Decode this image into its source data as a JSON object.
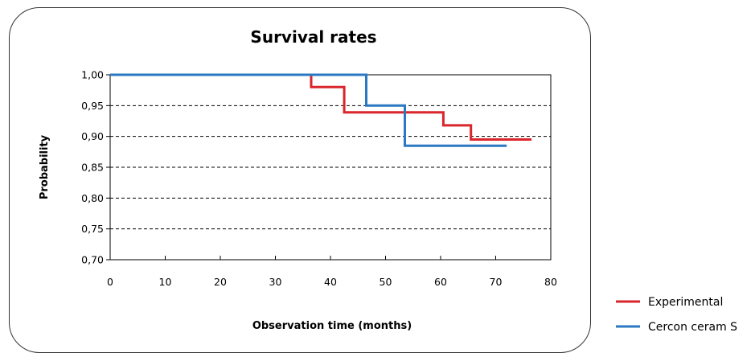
{
  "chart_data": {
    "type": "line",
    "step": true,
    "title": "Survival rates",
    "xlabel": "Observation time (months)",
    "ylabel": "Probability",
    "xlim": [
      0,
      80
    ],
    "ylim": [
      0.7,
      1.0
    ],
    "x_tick_labels": [
      "0",
      "10",
      "20",
      "30",
      "40",
      "50",
      "60",
      "70",
      "80"
    ],
    "x_tick_values": [
      0,
      10,
      20,
      30,
      40,
      50,
      60,
      70,
      80
    ],
    "y_tick_labels": [
      "1,00",
      "0,95",
      "0,90",
      "0,85",
      "0,80",
      "0,75",
      "0,70"
    ],
    "y_tick_values": [
      1.0,
      0.95,
      0.9,
      0.85,
      0.8,
      0.75,
      0.7
    ],
    "grid": "horizontal dashed",
    "legend_position": "bottom-right, outside",
    "series": [
      {
        "name": "Experimental",
        "color": "#d9252b",
        "x": [
          0,
          36.5,
          36.5,
          42.5,
          42.5,
          60.5,
          60.5,
          65.5,
          65.5,
          76.5
        ],
        "y": [
          1.0,
          1.0,
          0.98,
          0.98,
          0.939,
          0.939,
          0.918,
          0.918,
          0.895,
          0.895
        ]
      },
      {
        "name": "Cercon ceram S",
        "color": "#2a78c2",
        "x": [
          0,
          46.5,
          46.5,
          53.5,
          53.5,
          72
        ],
        "y": [
          1.0,
          1.0,
          0.95,
          0.95,
          0.885,
          0.885
        ]
      }
    ]
  }
}
